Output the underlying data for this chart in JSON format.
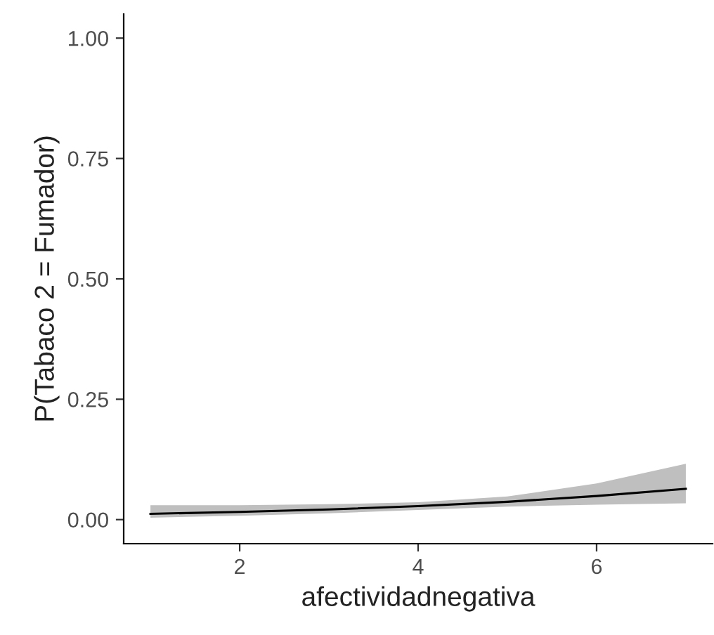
{
  "chart_data": {
    "type": "line",
    "xlabel": "afectividadnegativa",
    "ylabel": "P(Tabaco 2 = Fumador)",
    "x": [
      1,
      2,
      3,
      4,
      5,
      6,
      7
    ],
    "series": [
      {
        "color": "#000000",
        "values": [
          0.012,
          0.016,
          0.021,
          0.028,
          0.037,
          0.049,
          0.064
        ],
        "lower": [
          0.004,
          0.008,
          0.013,
          0.02,
          0.027,
          0.031,
          0.034
        ],
        "upper": [
          0.03,
          0.03,
          0.032,
          0.036,
          0.048,
          0.075,
          0.116
        ]
      }
    ],
    "xlim": [
      0.7,
      7.3
    ],
    "ylim": [
      -0.05,
      1.05
    ],
    "xticks": [
      2,
      4,
      6
    ],
    "yticks": [
      {
        "value": 0,
        "label": "0.00"
      },
      {
        "value": 0.25,
        "label": "0.25"
      },
      {
        "value": 0.5,
        "label": "0.50"
      },
      {
        "value": 0.75,
        "label": "0.75"
      },
      {
        "value": 1,
        "label": "1.00"
      }
    ],
    "grid": false,
    "legend": false,
    "marker": "none",
    "line_style": "solid"
  }
}
